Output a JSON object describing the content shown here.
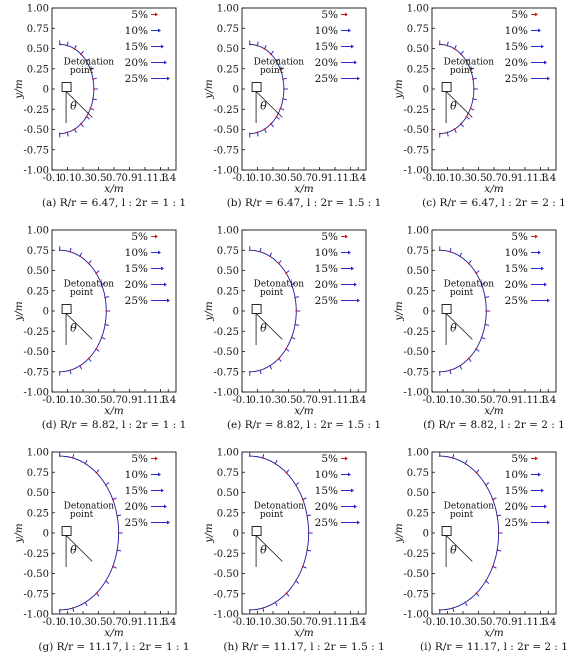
{
  "colors": {
    "axis": "#111111",
    "curve": "#1a1aa0",
    "arrow_head_5": "#d4161e",
    "arrow_head": "#2a2ad0",
    "box": "#111111"
  },
  "common": {
    "xlabel": "x/m",
    "ylabel": "y/m",
    "detonation_label_1": "Detonation",
    "detonation_label_2": "point",
    "theta_label": "θ",
    "xlim": [
      -0.1,
      1.5
    ],
    "ylim": [
      -1.0,
      1.0
    ],
    "x_ticks": [
      "-0.1",
      "0.1",
      "0.3",
      "0.5",
      "0.7",
      "0.9",
      "1.1",
      "1.3",
      "1.4"
    ],
    "y_ticks": [
      "1.00",
      "0.75",
      "0.50",
      "0.25",
      "0",
      "-0.25",
      "-0.50",
      "-0.75",
      "-1.00"
    ],
    "legend": [
      "5%",
      "10%",
      "15%",
      "20%",
      "25%"
    ]
  },
  "chart_data": [
    {
      "type": "line",
      "caption": "(a) R/r = 6.47,  l : 2r = 1 : 1",
      "radius": 0.55
    },
    {
      "type": "line",
      "caption": "(b) R/r = 6.47,  l : 2r = 1.5 : 1",
      "radius": 0.55
    },
    {
      "type": "line",
      "caption": "(c) R/r = 6.47,  l : 2r = 2 : 1",
      "radius": 0.55
    },
    {
      "type": "line",
      "caption": "(d) R/r = 8.82,  l : 2r = 1 : 1",
      "radius": 0.75
    },
    {
      "type": "line",
      "caption": "(e) R/r = 8.82,  l : 2r = 1.5 : 1",
      "radius": 0.75
    },
    {
      "type": "line",
      "caption": "(f) R/r = 8.82,  l : 2r = 2 : 1",
      "radius": 0.75
    },
    {
      "type": "line",
      "caption": "(g) R/r = 11.17,  l : 2r = 1 : 1",
      "radius": 0.95
    },
    {
      "type": "line",
      "caption": "(h) R/r = 11.17,  l : 2r = 1.5 : 1",
      "radius": 0.95
    },
    {
      "type": "line",
      "caption": "(i) R/r = 11.17,  l : 2r = 2 : 1",
      "radius": 0.95
    }
  ]
}
